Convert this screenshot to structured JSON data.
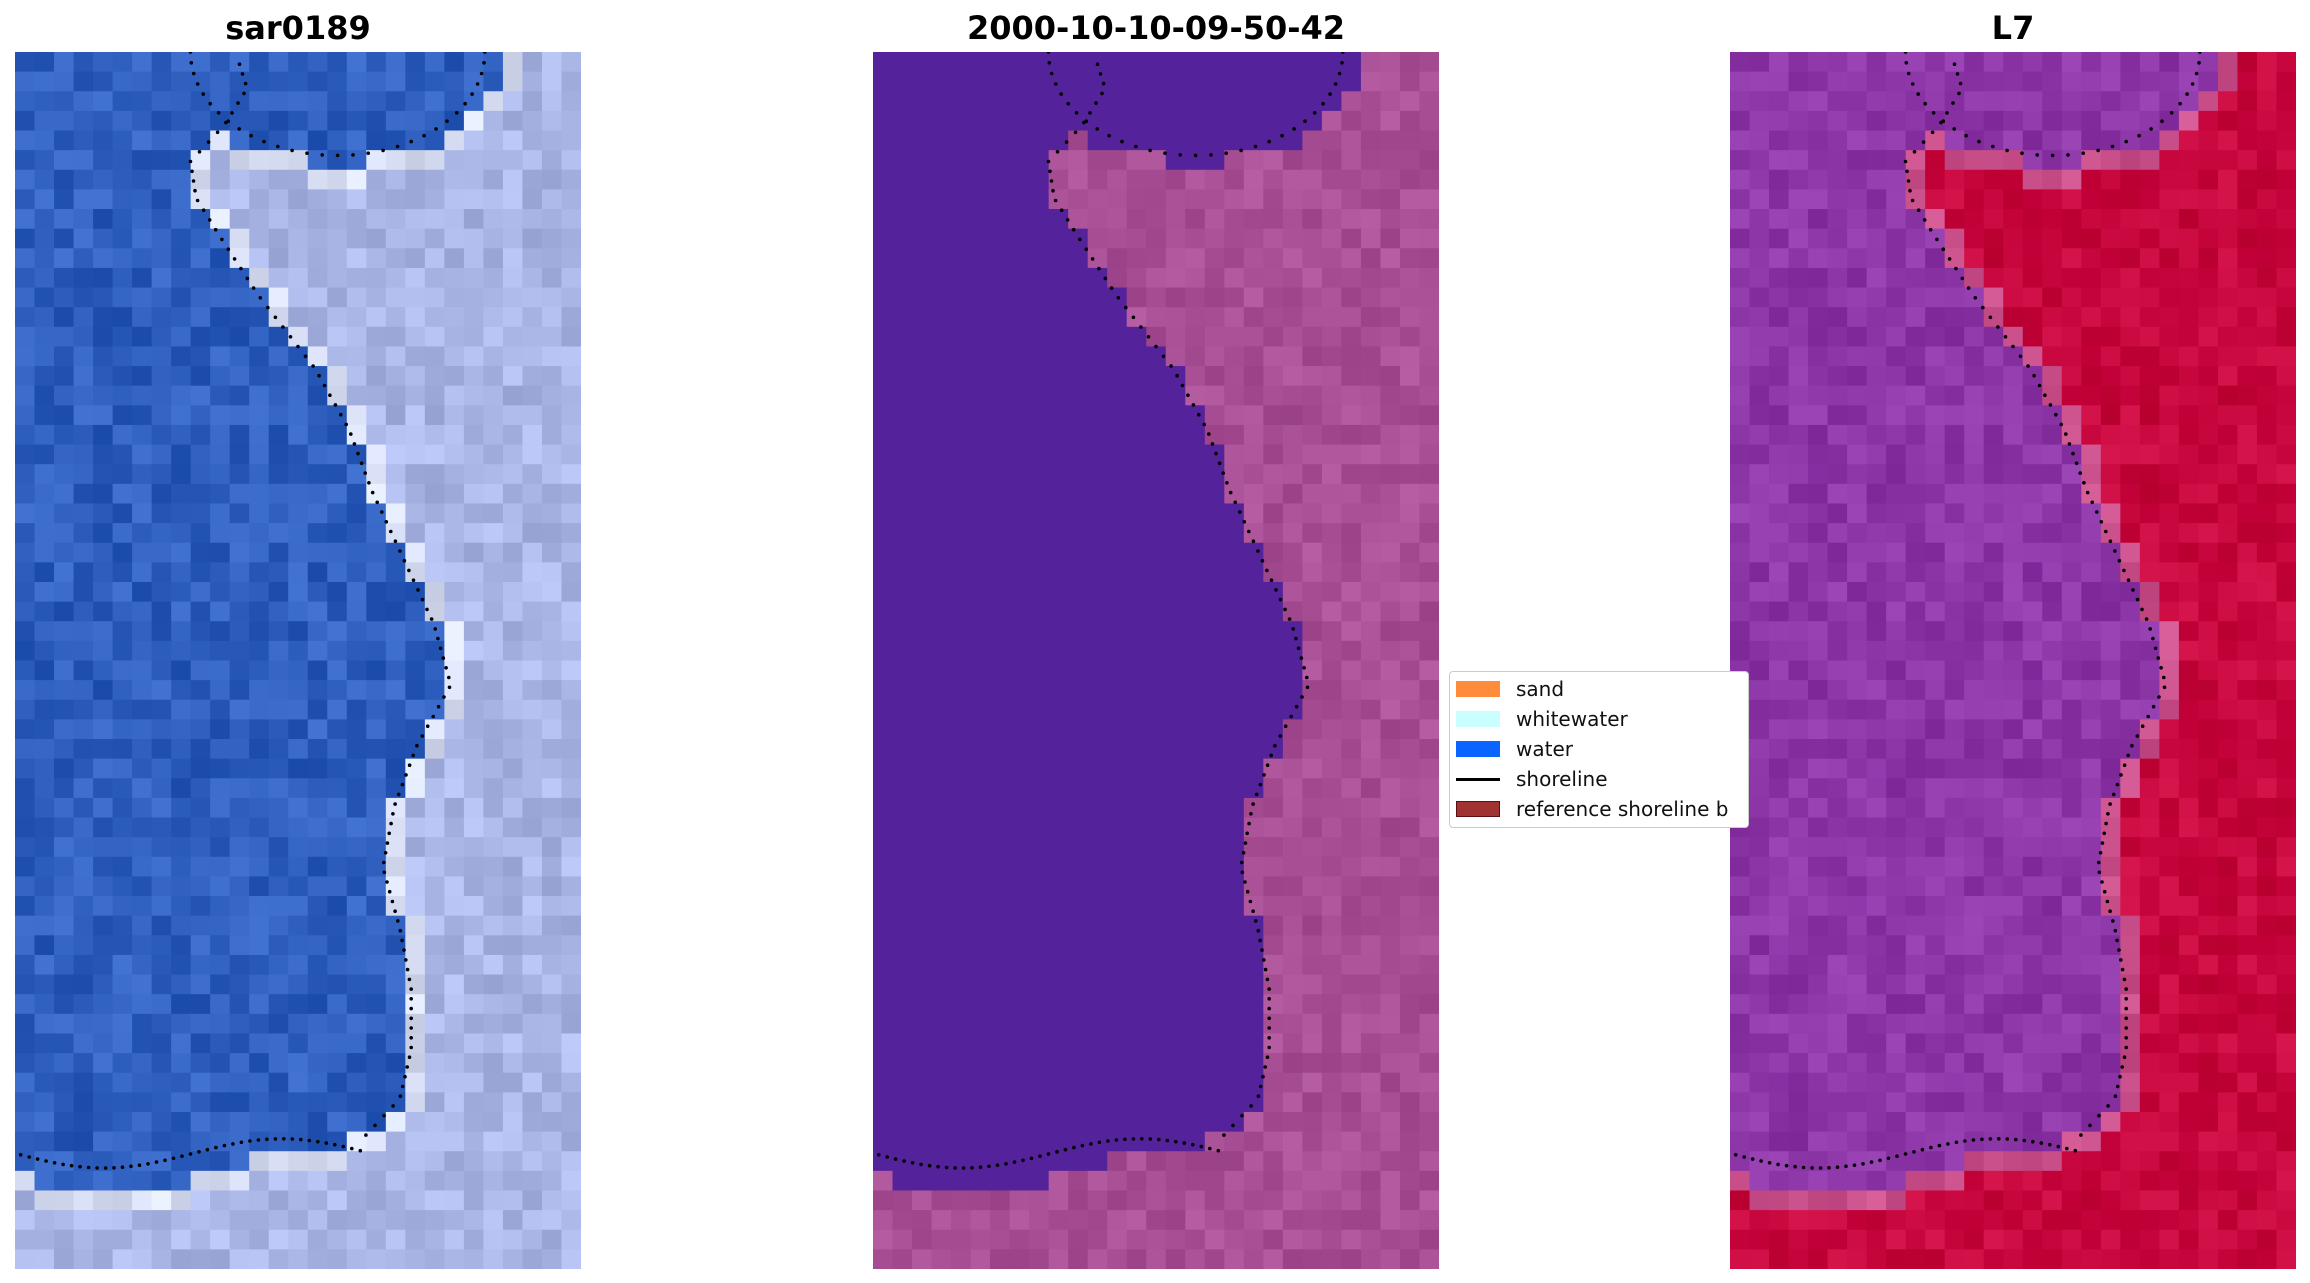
{
  "panels": [
    {
      "title": "sar0189",
      "kind": "rgb"
    },
    {
      "title": "2000-10-10-09-50-42",
      "kind": "classified"
    },
    {
      "title": "L7",
      "kind": "index"
    }
  ],
  "legend": {
    "items": [
      {
        "label": "sand",
        "color": "#ff8c3a",
        "type": "patch"
      },
      {
        "label": "whitewater",
        "color": "#c8ffff",
        "type": "patch"
      },
      {
        "label": "water",
        "color": "#0a64ff",
        "type": "patch"
      },
      {
        "label": "shoreline",
        "color": "#000000",
        "type": "line"
      },
      {
        "label": "reference shoreline b",
        "color": "#a03232",
        "type": "patch"
      }
    ]
  },
  "colors": {
    "rgb_water": "#2e5fbf",
    "rgb_land": "#a9b6e6",
    "classified_water": "#54229a",
    "classified_land": "#a84f95",
    "index_water": "#8d36a8",
    "index_land": "#c7063e",
    "shoreline_dots": "#000000"
  }
}
